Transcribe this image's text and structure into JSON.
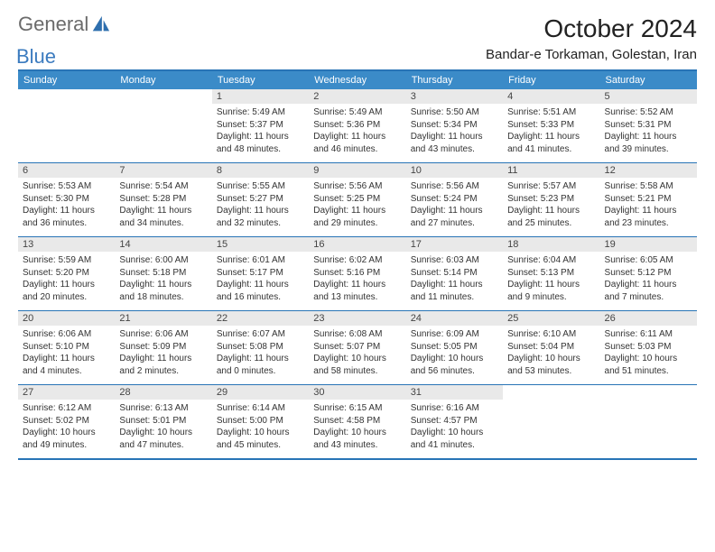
{
  "logo": {
    "text1": "General",
    "text2": "Blue",
    "icon_color": "#2e6fae"
  },
  "title": "October 2024",
  "subtitle": "Bandar-e Torkaman, Golestan, Iran",
  "day_headers": [
    "Sunday",
    "Monday",
    "Tuesday",
    "Wednesday",
    "Thursday",
    "Friday",
    "Saturday"
  ],
  "colors": {
    "header_bg": "#3b8bc8",
    "header_text": "#ffffff",
    "border": "#2874b6",
    "daynum_bg": "#e9e9e9",
    "text": "#333333"
  },
  "weeks": [
    [
      {
        "empty": true
      },
      {
        "empty": true
      },
      {
        "n": "1",
        "sr": "5:49 AM",
        "ss": "5:37 PM",
        "dl": "11 hours and 48 minutes."
      },
      {
        "n": "2",
        "sr": "5:49 AM",
        "ss": "5:36 PM",
        "dl": "11 hours and 46 minutes."
      },
      {
        "n": "3",
        "sr": "5:50 AM",
        "ss": "5:34 PM",
        "dl": "11 hours and 43 minutes."
      },
      {
        "n": "4",
        "sr": "5:51 AM",
        "ss": "5:33 PM",
        "dl": "11 hours and 41 minutes."
      },
      {
        "n": "5",
        "sr": "5:52 AM",
        "ss": "5:31 PM",
        "dl": "11 hours and 39 minutes."
      }
    ],
    [
      {
        "n": "6",
        "sr": "5:53 AM",
        "ss": "5:30 PM",
        "dl": "11 hours and 36 minutes."
      },
      {
        "n": "7",
        "sr": "5:54 AM",
        "ss": "5:28 PM",
        "dl": "11 hours and 34 minutes."
      },
      {
        "n": "8",
        "sr": "5:55 AM",
        "ss": "5:27 PM",
        "dl": "11 hours and 32 minutes."
      },
      {
        "n": "9",
        "sr": "5:56 AM",
        "ss": "5:25 PM",
        "dl": "11 hours and 29 minutes."
      },
      {
        "n": "10",
        "sr": "5:56 AM",
        "ss": "5:24 PM",
        "dl": "11 hours and 27 minutes."
      },
      {
        "n": "11",
        "sr": "5:57 AM",
        "ss": "5:23 PM",
        "dl": "11 hours and 25 minutes."
      },
      {
        "n": "12",
        "sr": "5:58 AM",
        "ss": "5:21 PM",
        "dl": "11 hours and 23 minutes."
      }
    ],
    [
      {
        "n": "13",
        "sr": "5:59 AM",
        "ss": "5:20 PM",
        "dl": "11 hours and 20 minutes."
      },
      {
        "n": "14",
        "sr": "6:00 AM",
        "ss": "5:18 PM",
        "dl": "11 hours and 18 minutes."
      },
      {
        "n": "15",
        "sr": "6:01 AM",
        "ss": "5:17 PM",
        "dl": "11 hours and 16 minutes."
      },
      {
        "n": "16",
        "sr": "6:02 AM",
        "ss": "5:16 PM",
        "dl": "11 hours and 13 minutes."
      },
      {
        "n": "17",
        "sr": "6:03 AM",
        "ss": "5:14 PM",
        "dl": "11 hours and 11 minutes."
      },
      {
        "n": "18",
        "sr": "6:04 AM",
        "ss": "5:13 PM",
        "dl": "11 hours and 9 minutes."
      },
      {
        "n": "19",
        "sr": "6:05 AM",
        "ss": "5:12 PM",
        "dl": "11 hours and 7 minutes."
      }
    ],
    [
      {
        "n": "20",
        "sr": "6:06 AM",
        "ss": "5:10 PM",
        "dl": "11 hours and 4 minutes."
      },
      {
        "n": "21",
        "sr": "6:06 AM",
        "ss": "5:09 PM",
        "dl": "11 hours and 2 minutes."
      },
      {
        "n": "22",
        "sr": "6:07 AM",
        "ss": "5:08 PM",
        "dl": "11 hours and 0 minutes."
      },
      {
        "n": "23",
        "sr": "6:08 AM",
        "ss": "5:07 PM",
        "dl": "10 hours and 58 minutes."
      },
      {
        "n": "24",
        "sr": "6:09 AM",
        "ss": "5:05 PM",
        "dl": "10 hours and 56 minutes."
      },
      {
        "n": "25",
        "sr": "6:10 AM",
        "ss": "5:04 PM",
        "dl": "10 hours and 53 minutes."
      },
      {
        "n": "26",
        "sr": "6:11 AM",
        "ss": "5:03 PM",
        "dl": "10 hours and 51 minutes."
      }
    ],
    [
      {
        "n": "27",
        "sr": "6:12 AM",
        "ss": "5:02 PM",
        "dl": "10 hours and 49 minutes."
      },
      {
        "n": "28",
        "sr": "6:13 AM",
        "ss": "5:01 PM",
        "dl": "10 hours and 47 minutes."
      },
      {
        "n": "29",
        "sr": "6:14 AM",
        "ss": "5:00 PM",
        "dl": "10 hours and 45 minutes."
      },
      {
        "n": "30",
        "sr": "6:15 AM",
        "ss": "4:58 PM",
        "dl": "10 hours and 43 minutes."
      },
      {
        "n": "31",
        "sr": "6:16 AM",
        "ss": "4:57 PM",
        "dl": "10 hours and 41 minutes."
      },
      {
        "empty": true
      },
      {
        "empty": true
      }
    ]
  ],
  "labels": {
    "sunrise": "Sunrise: ",
    "sunset": "Sunset: ",
    "daylight": "Daylight: "
  }
}
